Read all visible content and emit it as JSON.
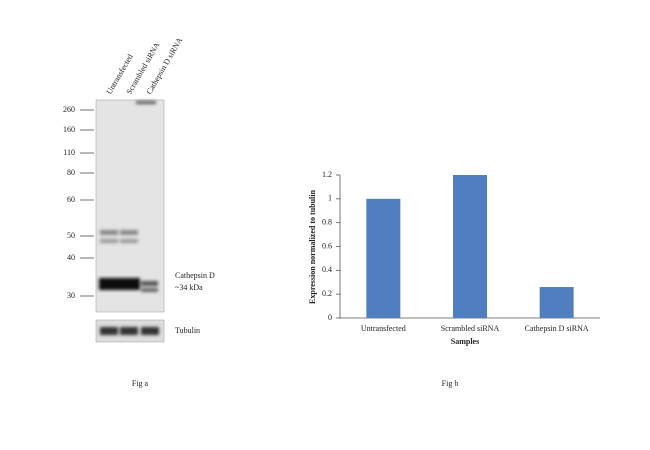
{
  "figure_a": {
    "lanes": [
      "Untransfected",
      "Scrambled siRNA",
      "Cathepsin D siRNA"
    ],
    "markers": [
      260,
      160,
      110,
      80,
      60,
      50,
      40,
      30
    ],
    "band_label": [
      "Cathepsin D",
      "~34 kDa"
    ],
    "loading_control": "Tubulin",
    "caption": "Fig a"
  },
  "chart_data": {
    "type": "bar",
    "categories": [
      "Untransfected",
      "Scrambled siRNA",
      "Cathepsin D siRNA"
    ],
    "values": [
      1,
      1.2,
      0.26
    ],
    "color": "#4f7fc0",
    "ylim": [
      0,
      1.2
    ],
    "yticks": [
      0,
      0.2,
      0.4,
      0.6,
      0.8,
      1,
      1.2
    ],
    "xlabel": "Samples",
    "ylabel": "Expression normalized to tubulin"
  },
  "figure_b": {
    "caption": "Fig b"
  }
}
